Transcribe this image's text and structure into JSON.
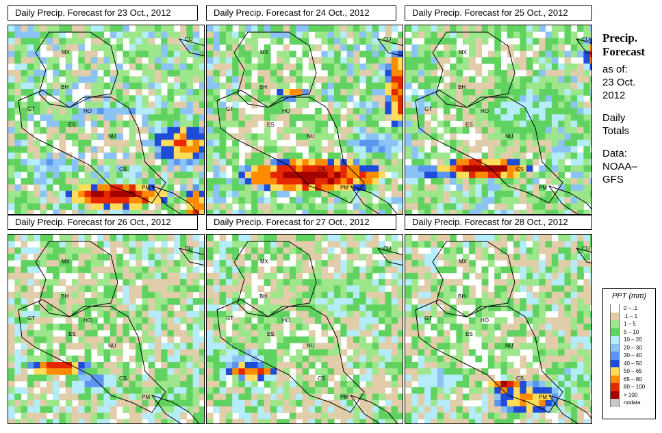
{
  "panels": [
    {
      "title": "Daily Precip. Forecast for  23 Oct., 2012"
    },
    {
      "title": "Daily Precip. Forecast for  24 Oct., 2012"
    },
    {
      "title": "Daily Precip. Forecast for  25 Oct., 2012"
    },
    {
      "title": "Daily Precip. Forecast for  26 Oct., 2012"
    },
    {
      "title": "Daily Precip. Forecast for  27 Oct., 2012"
    },
    {
      "title": "Daily Precip. Forecast for  28 Oct., 2012"
    }
  ],
  "country_labels": [
    "MX",
    "BH",
    "GT",
    "HO",
    "ES",
    "NU",
    "CS",
    "PM",
    "CU"
  ],
  "sidebar": {
    "head1": "Precip.",
    "head2": "Forecast",
    "asof1": "as of:",
    "asof2": "23 Oct.",
    "asof3": "2012",
    "daily1": "Daily",
    "daily2": "Totals",
    "data1": "Data:",
    "data2": "NOAA–",
    "data3": "GFS"
  },
  "legend": {
    "title": "PPT (mm)",
    "items": [
      {
        "label": "0 – .1",
        "color": "#ffffff"
      },
      {
        "label": ".1 – 1",
        "color": "#e1cda9"
      },
      {
        "label": "1 – 5",
        "color": "#9ee68c"
      },
      {
        "label": "5 – 10",
        "color": "#5fd25f"
      },
      {
        "label": "10 – 20",
        "color": "#b4ecfa"
      },
      {
        "label": "20 – 30",
        "color": "#8cc3f5"
      },
      {
        "label": "30 – 40",
        "color": "#5a96f0"
      },
      {
        "label": "40 – 50",
        "color": "#1e4bd7"
      },
      {
        "label": "50 – 65",
        "color": "#ffdc5a"
      },
      {
        "label": "65 – 80",
        "color": "#ff8c00"
      },
      {
        "label": "80 – 100",
        "color": "#e62800"
      },
      {
        "label": "> 100",
        "color": "#a50000"
      },
      {
        "label": "nodata",
        "color": "#c8c8c8"
      }
    ]
  }
}
